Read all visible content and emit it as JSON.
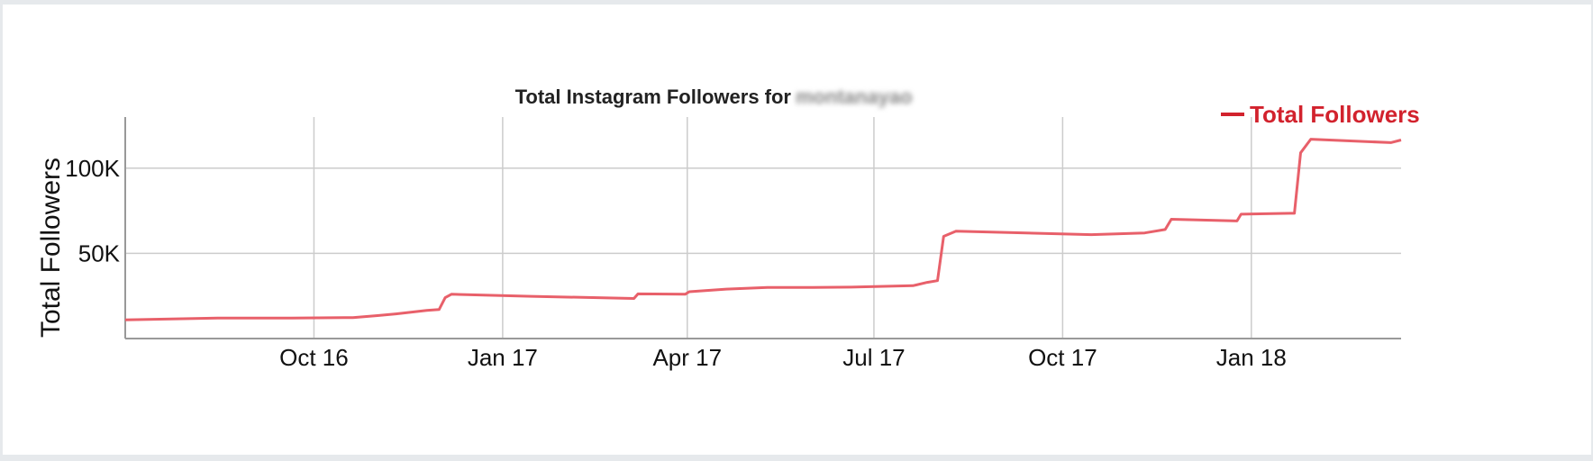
{
  "chart_data": {
    "type": "line",
    "title": "Total Instagram Followers for",
    "title_redacted": "montanayao",
    "xlabel": "",
    "ylabel": "Total Followers",
    "x_tick_labels": [
      "Oct 16",
      "Jan 17",
      "Apr 17",
      "Jul 17",
      "Oct 17",
      "Jan 18"
    ],
    "x_range": [
      "2016-07-01",
      "2018-03-15"
    ],
    "y_ticks": [
      50000,
      100000
    ],
    "y_tick_labels": [
      "50K",
      "100K"
    ],
    "ylim": [
      0,
      130000
    ],
    "grid": true,
    "legend_position": "top-right",
    "series": [
      {
        "name": "Total Followers",
        "color": "#e8606a",
        "x": [
          "2016-07-01",
          "2016-08-15",
          "2016-09-20",
          "2016-10-20",
          "2016-11-01",
          "2016-11-10",
          "2016-11-25",
          "2016-12-01",
          "2016-12-04",
          "2016-12-07",
          "2017-01-15",
          "2017-03-06",
          "2017-03-08",
          "2017-03-31",
          "2017-04-02",
          "2017-04-20",
          "2017-05-10",
          "2017-06-01",
          "2017-06-20",
          "2017-07-20",
          "2017-07-27",
          "2017-08-01",
          "2017-08-04",
          "2017-08-10",
          "2017-10-15",
          "2017-11-10",
          "2017-11-20",
          "2017-11-23",
          "2017-12-25",
          "2017-12-27",
          "2018-01-20",
          "2018-01-22",
          "2018-01-25",
          "2018-01-30",
          "2018-03-10",
          "2018-03-15"
        ],
        "y": [
          11000,
          12000,
          12000,
          12300,
          13500,
          14500,
          16500,
          17000,
          24000,
          26000,
          24800,
          23500,
          26200,
          26000,
          27500,
          29000,
          30000,
          30000,
          30200,
          31000,
          33000,
          34000,
          60000,
          63000,
          61000,
          62000,
          64000,
          70000,
          69000,
          73000,
          73500,
          73500,
          109000,
          117000,
          115000,
          116500
        ]
      }
    ]
  }
}
